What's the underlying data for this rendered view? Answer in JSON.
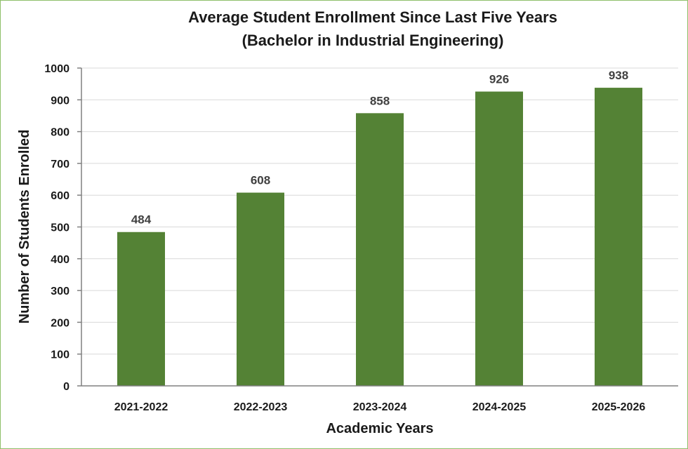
{
  "chart_data": {
    "type": "bar",
    "title": "Average Student Enrollment Since Last Five Years",
    "subtitle": "(Bachelor in Industrial Engineering)",
    "xlabel": "Academic Years",
    "ylabel": "Number of Students Enrolled",
    "categories": [
      "2021-2022",
      "2022-2023",
      "2023-2024",
      "2024-2025",
      "2025-2026"
    ],
    "values": [
      484,
      608,
      858,
      926,
      938
    ],
    "ylim": [
      0,
      1000
    ],
    "yticks": [
      0,
      100,
      200,
      300,
      400,
      500,
      600,
      700,
      800,
      900,
      1000
    ],
    "grid": true,
    "legend": "none",
    "bar_color": "#548235"
  }
}
